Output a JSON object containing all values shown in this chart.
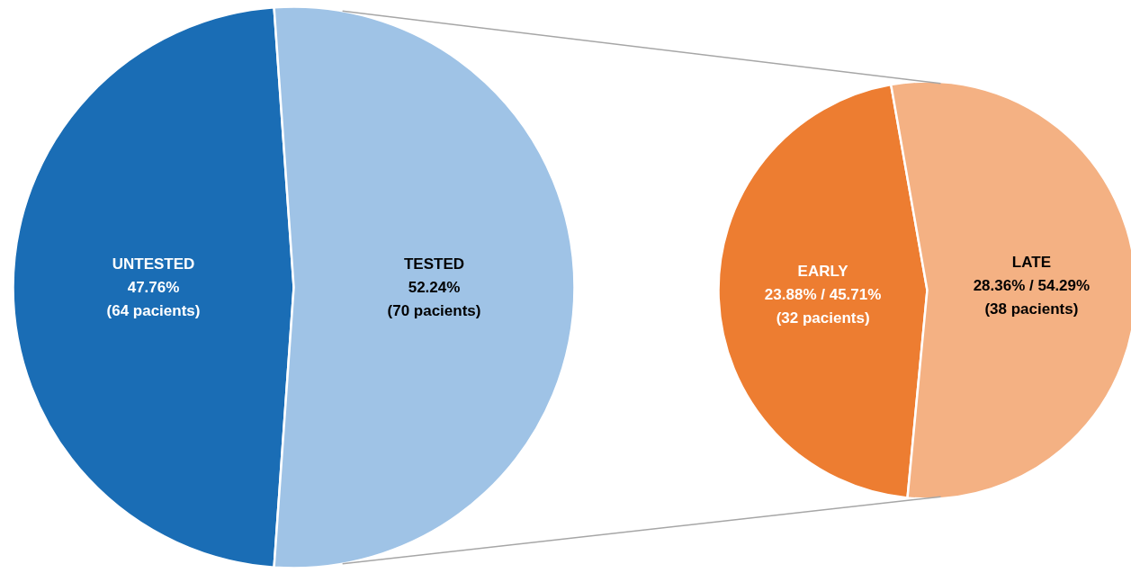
{
  "chart_data": [
    {
      "type": "pie",
      "categories": [
        "UNTESTED",
        "TESTED"
      ],
      "values": [
        64,
        70
      ],
      "colors": [
        "#1a6db5",
        "#9fc3e6"
      ],
      "value_labels": [
        "47.76%\n(64 pacients)",
        "52.24%\n(70 pacients)"
      ]
    },
    {
      "type": "pie",
      "categories": [
        "EARLY",
        "LATE"
      ],
      "values": [
        32,
        38
      ],
      "colors": [
        "#ed7d31",
        "#f4b183"
      ],
      "value_labels": [
        "23.88% / 45.71%\n(32 pacients)",
        "28.36% / 54.29%\n(38 pacients)"
      ]
    }
  ]
}
